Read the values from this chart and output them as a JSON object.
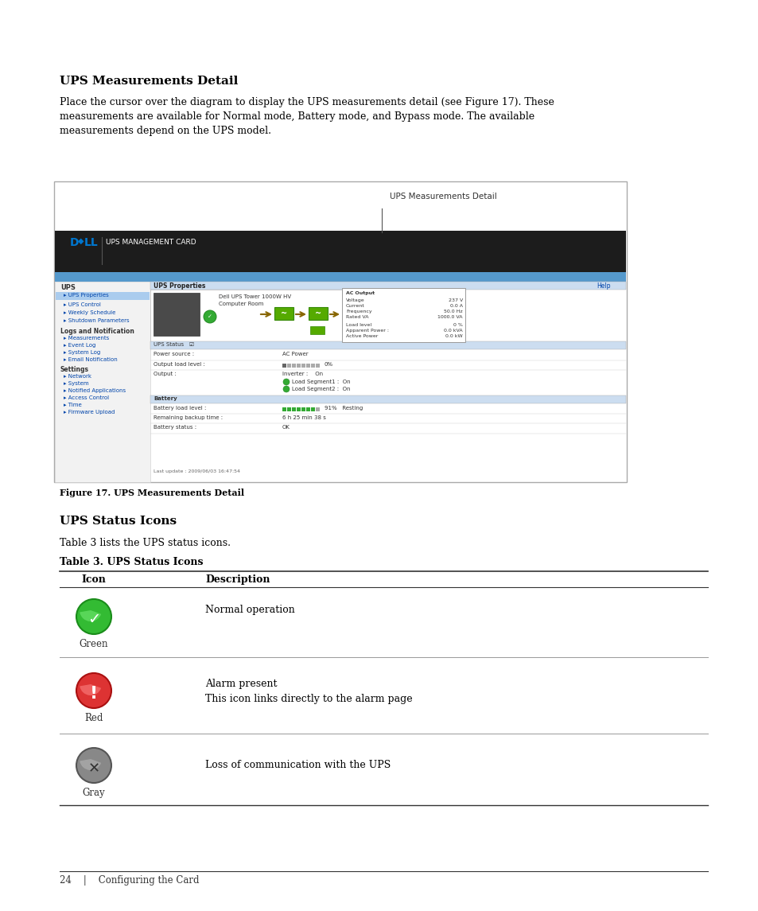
{
  "title_section1": "UPS Measurements Detail",
  "body_text1": "Place the cursor over the diagram to display the UPS measurements detail (see Figure 17). These\nmeasurements are available for Normal mode, Battery mode, and Bypass mode. The available\nmeasurements depend on the UPS model.",
  "figure_caption": "Figure 17. UPS Measurements Detail",
  "figure_label": "UPS Measurements Detail",
  "title_section2": "UPS Status Icons",
  "body_text2": "Table 3 lists the UPS status icons.",
  "table_title": "Table 3. UPS Status Icons",
  "table_col1": "Icon",
  "table_col2": "Description",
  "row1_label": "Green",
  "row1_desc": "Normal operation",
  "row2_label": "Red",
  "row2_desc1": "Alarm present",
  "row2_desc2": "This icon links directly to the alarm page",
  "row3_label": "Gray",
  "row3_desc": "Loss of communication with the UPS",
  "footer_text": "24    |    Configuring the Card",
  "bg_color": "#ffffff",
  "box_edge": "#aaaaaa",
  "dark_bar": "#1c1c1c",
  "blue_bar": "#5599cc",
  "sidebar_bg": "#f2f2f2",
  "prop_bar_bg": "#ccddf0",
  "tip_border": "#aaaaaa"
}
